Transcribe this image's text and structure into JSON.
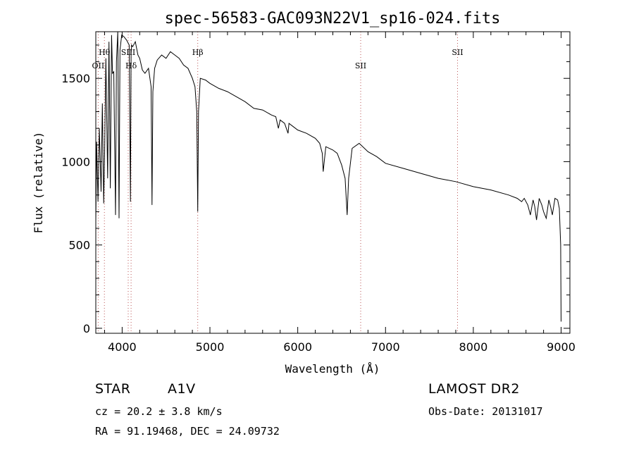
{
  "chart_data": {
    "type": "line",
    "title": "spec-56583-GAC093N22V1_sp16-024.fits",
    "xlabel": "Wavelength (Å)",
    "ylabel": "Flux (relative)",
    "xlim": [
      3700,
      9100
    ],
    "ylim": [
      -30,
      1780
    ],
    "xticks": [
      4000,
      5000,
      6000,
      7000,
      8000,
      9000
    ],
    "yticks": [
      0,
      500,
      1000,
      1500
    ],
    "grid": false,
    "series": [
      {
        "x": [
          3700,
          3710,
          3725,
          3740,
          3760,
          3775,
          3790,
          3800,
          3815,
          3835,
          3850,
          3865,
          3880,
          3890,
          3905,
          3925,
          3935,
          3950,
          3965,
          3975,
          3995,
          4020,
          4050,
          4080,
          4095,
          4102,
          4108,
          4120,
          4150,
          4180,
          4200,
          4230,
          4260,
          4300,
          4330,
          4340,
          4350,
          4370,
          4400,
          4450,
          4500,
          4550,
          4600,
          4650,
          4700,
          4750,
          4800,
          4830,
          4850,
          4861,
          4870,
          4890,
          4950,
          5000,
          5100,
          5200,
          5300,
          5400,
          5500,
          5600,
          5700,
          5750,
          5780,
          5800,
          5850,
          5890,
          5900,
          5950,
          6000,
          6100,
          6200,
          6250,
          6280,
          6290,
          6320,
          6400,
          6450,
          6500,
          6540,
          6563,
          6580,
          6620,
          6700,
          6800,
          6900,
          7000,
          7200,
          7400,
          7600,
          7800,
          8000,
          8200,
          8400,
          8500,
          8550,
          8580,
          8620,
          8650,
          8680,
          8700,
          8720,
          8750,
          8780,
          8800,
          8830,
          8860,
          8880,
          8900,
          8930,
          8960,
          8980,
          8995,
          9000
        ],
        "y": [
          640,
          1120,
          760,
          1200,
          820,
          1350,
          750,
          1050,
          1620,
          900,
          1720,
          840,
          1760,
          1530,
          1540,
          680,
          1600,
          1800,
          660,
          1670,
          1760,
          1750,
          1730,
          1700,
          760,
          1650,
          1700,
          1690,
          1720,
          1640,
          1620,
          1550,
          1530,
          1560,
          1450,
          740,
          1420,
          1560,
          1610,
          1640,
          1620,
          1660,
          1640,
          1620,
          1580,
          1560,
          1500,
          1450,
          1300,
          700,
          1300,
          1500,
          1490,
          1470,
          1440,
          1420,
          1390,
          1360,
          1320,
          1310,
          1280,
          1270,
          1200,
          1250,
          1230,
          1170,
          1230,
          1210,
          1190,
          1170,
          1140,
          1110,
          1050,
          940,
          1090,
          1070,
          1050,
          980,
          900,
          680,
          900,
          1080,
          1110,
          1060,
          1030,
          990,
          960,
          930,
          900,
          880,
          850,
          830,
          800,
          780,
          760,
          780,
          740,
          680,
          770,
          730,
          650,
          780,
          740,
          700,
          660,
          770,
          730,
          680,
          780,
          770,
          720,
          500,
          40
        ]
      }
    ],
    "lines": [
      {
        "name": "OII",
        "wave": 3727,
        "pos": "lower"
      },
      {
        "name": "Hθ",
        "wave": 3798,
        "pos": "upper"
      },
      {
        "name": "SIII",
        "wave": 4069,
        "pos": "upper"
      },
      {
        "name": "Hδ",
        "wave": 4102,
        "pos": "lower"
      },
      {
        "name": "Hβ",
        "wave": 4861,
        "pos": "upper"
      },
      {
        "name": "SII",
        "wave": 6717,
        "pos": "lower"
      },
      {
        "name": "SII",
        "wave": 7820,
        "pos": "upper"
      }
    ]
  },
  "footer": {
    "class": "STAR",
    "subclass": "A1V",
    "survey": "LAMOST DR2",
    "cz": "cz = 20.2 ± 3.8 km/s",
    "obs_date": "Obs-Date: 20131017",
    "radec": "RA =  91.19468, DEC =  24.09732"
  }
}
